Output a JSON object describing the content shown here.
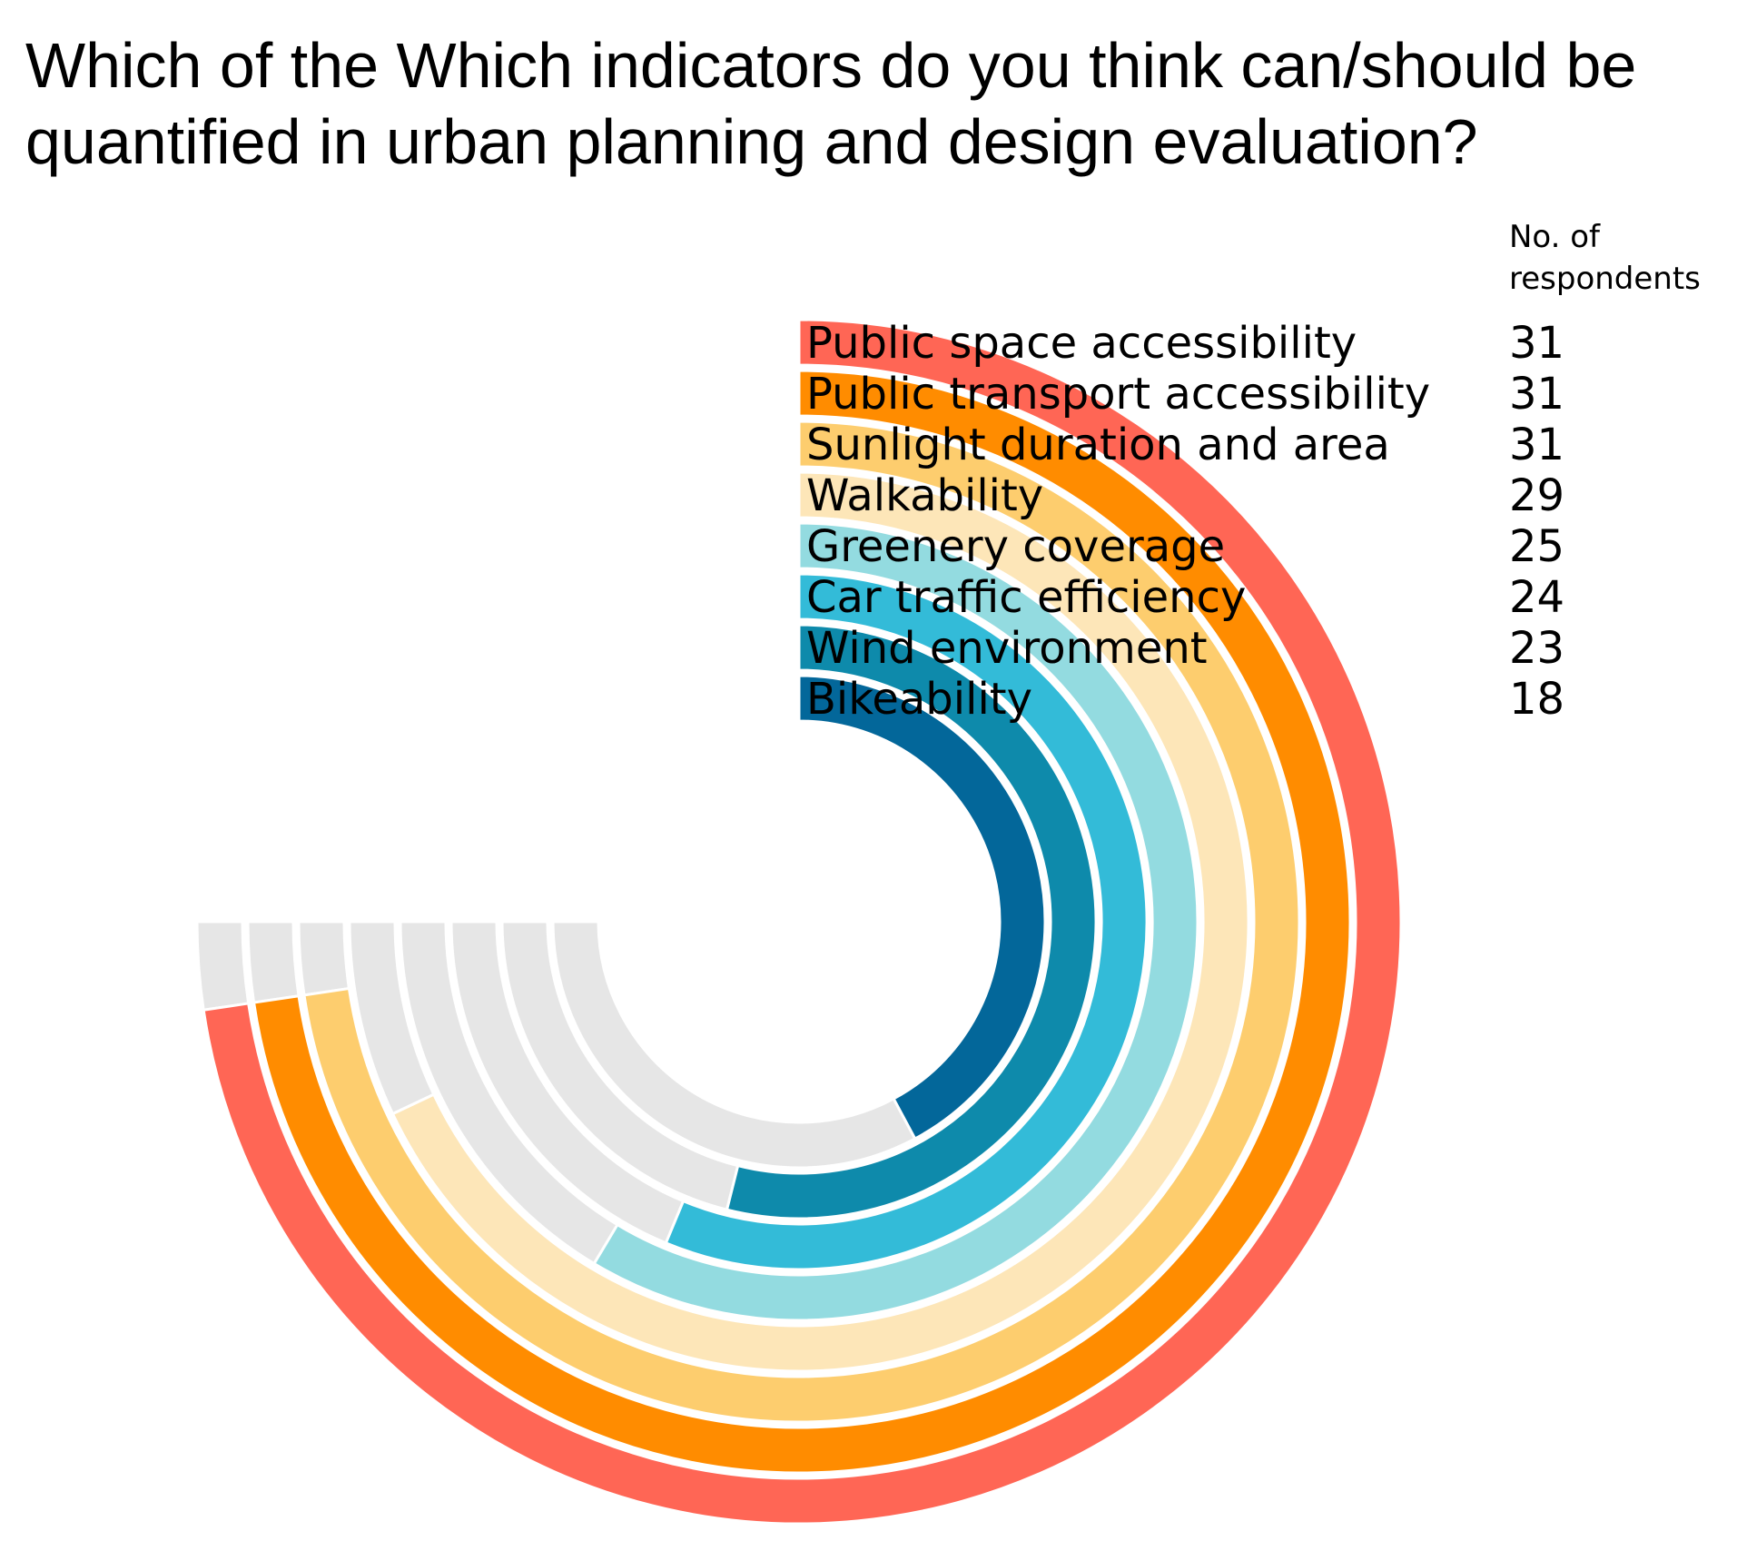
{
  "title": "Which of the Which indicators do you think can/should be quantified in urban planning and design evaluation?",
  "value_header": "No. of respondents",
  "chart_data": {
    "type": "radial-bar",
    "title": "Which of the Which indicators do you think can/should be quantified in urban planning and design evaluation?",
    "value_label": "No. of respondents",
    "max_value": 32,
    "categories": [
      "Public space accessibility",
      "Public transport accessibility",
      "Sunlight duration and area",
      "Walkability",
      "Greenery coverage",
      "Car traffic efficiency",
      "Wind environment",
      "Bikeability"
    ],
    "values": [
      31,
      31,
      31,
      29,
      25,
      24,
      23,
      18
    ],
    "colors": [
      "#ff6655",
      "#ff8c00",
      "#fdcd6e",
      "#fde6b8",
      "#93dbe0",
      "#33bbd8",
      "#0e8aab",
      "#03679a"
    ],
    "track_color": "#e6e6e6"
  }
}
